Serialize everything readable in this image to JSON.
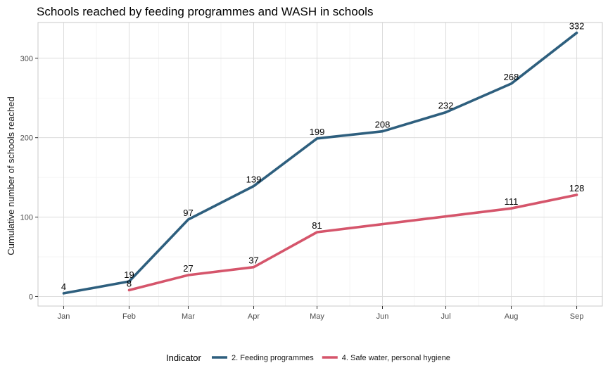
{
  "chart_data": {
    "type": "line",
    "title": "Schools reached by feeding programmes and WASH in schools",
    "xlabel": "",
    "ylabel": "Cumulative number of schools reached",
    "categories": [
      "Jan",
      "Feb",
      "Mar",
      "Apr",
      "May",
      "Jun",
      "Jul",
      "Aug",
      "Sep"
    ],
    "x_date_range": [
      "2021-01-01",
      "2021-09-01"
    ],
    "ylim": [
      0,
      345
    ],
    "yticks": [
      0,
      100,
      200,
      300
    ],
    "grid": true,
    "legend": {
      "title": "Indicator",
      "placement": "bottom"
    },
    "series": [
      {
        "name": "2. Feeding programmes",
        "color": "#2e5f7e",
        "points": [
          {
            "x": "2021-01-01",
            "y": 4,
            "label": "4"
          },
          {
            "x": "2021-02-01",
            "y": 19,
            "label": "19"
          },
          {
            "x": "2021-03-01",
            "y": 97,
            "label": "97"
          },
          {
            "x": "2021-04-01",
            "y": 139,
            "label": "139"
          },
          {
            "x": "2021-05-01",
            "y": 199,
            "label": "199"
          },
          {
            "x": "2021-06-01",
            "y": 208,
            "label": "208"
          },
          {
            "x": "2021-07-01",
            "y": 232,
            "label": "232"
          },
          {
            "x": "2021-08-01",
            "y": 268,
            "label": "268"
          },
          {
            "x": "2021-09-01",
            "y": 332,
            "label": "332"
          }
        ]
      },
      {
        "name": "4. Safe water, personal hygiene",
        "color": "#d5556b",
        "points": [
          {
            "x": "2021-02-01",
            "y": 8,
            "label": "8"
          },
          {
            "x": "2021-03-01",
            "y": 27,
            "label": "27"
          },
          {
            "x": "2021-04-01",
            "y": 37,
            "label": "37"
          },
          {
            "x": "2021-05-01",
            "y": 81,
            "label": "81"
          },
          {
            "x": "2021-08-01",
            "y": 111,
            "label": "111"
          },
          {
            "x": "2021-09-01",
            "y": 128,
            "label": "128"
          }
        ]
      }
    ]
  }
}
